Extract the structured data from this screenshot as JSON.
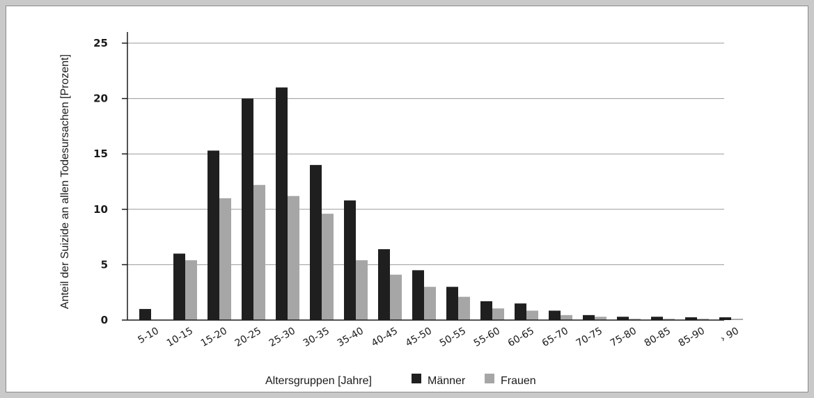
{
  "chart_data": {
    "type": "bar",
    "xlabel": "Altersgruppen [Jahre]",
    "ylabel": "Anteil der Suizide an allen Todesursachen [Prozent]",
    "ylim": [
      0,
      25
    ],
    "yticks": [
      "0",
      "5",
      "10",
      "15",
      "20",
      "25"
    ],
    "grid": true,
    "legend_position": "bottom",
    "categories": [
      "5-10",
      "10-15",
      "15-20",
      "20-25",
      "25-30",
      "30-35",
      "35-40",
      "40-45",
      "45-50",
      "50-55",
      "55-60",
      "60-65",
      "65-70",
      "70-75",
      "75-80",
      "80-85",
      "85-90",
      "› 90"
    ],
    "series": [
      {
        "name": "Männer",
        "color": "#1f1f1f",
        "values": [
          1.0,
          6.0,
          15.3,
          20.0,
          21.0,
          14.0,
          10.8,
          6.4,
          4.5,
          3.0,
          1.7,
          1.5,
          0.85,
          0.45,
          0.3,
          0.3,
          0.25,
          0.25
        ]
      },
      {
        "name": "Frauen",
        "color": "#a6a6a6",
        "values": [
          0.0,
          5.4,
          11.0,
          12.2,
          11.2,
          9.6,
          5.4,
          4.1,
          3.0,
          2.1,
          1.05,
          0.85,
          0.45,
          0.3,
          0.12,
          0.12,
          0.12,
          0.12
        ]
      }
    ]
  }
}
